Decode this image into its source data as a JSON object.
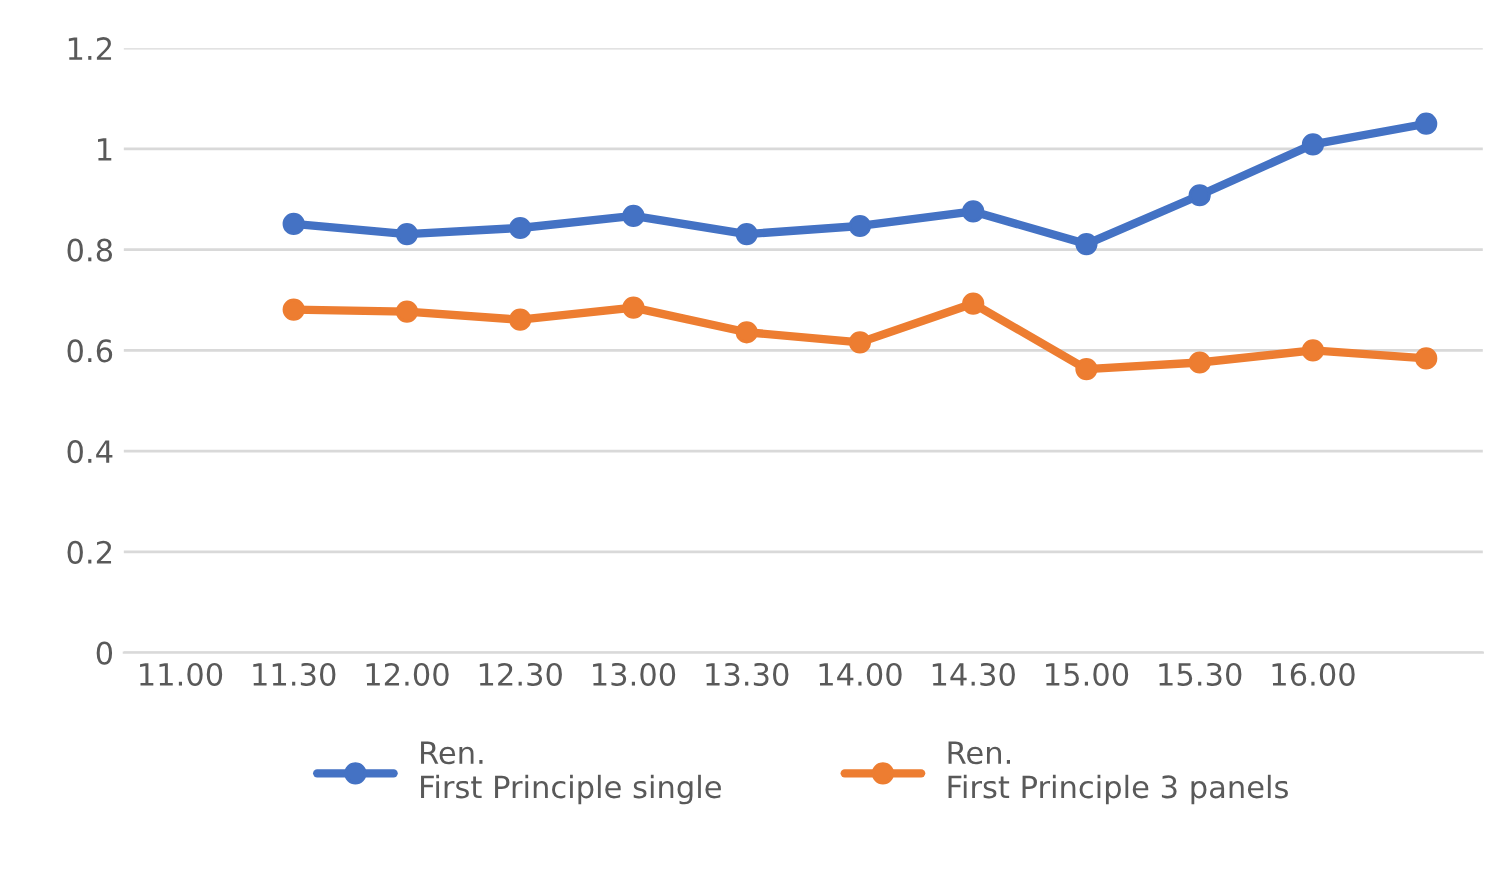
{
  "chart_data": {
    "type": "line",
    "categories": [
      "11.00",
      "11.30",
      "12.00",
      "12.30",
      "13.00",
      "13.30",
      "14.00",
      "14.30",
      "15.00",
      "15.30",
      "16.00",
      null
    ],
    "series": [
      {
        "name": "Ren.\nFirst Principle single",
        "color": "#4472c4",
        "values": [
          null,
          0.851,
          0.831,
          0.843,
          0.867,
          0.831,
          0.847,
          0.876,
          0.811,
          0.908,
          1.009,
          1.05
        ]
      },
      {
        "name": "Ren.\nFirst Principle 3 panels",
        "color": "#ed7d31",
        "values": [
          null,
          0.681,
          0.677,
          0.661,
          0.685,
          0.636,
          0.616,
          0.693,
          0.563,
          0.576,
          0.6,
          0.584
        ]
      }
    ],
    "ylim": [
      0,
      1.2
    ],
    "yticks": [
      0,
      0.2,
      0.4,
      0.6,
      0.8,
      1,
      1.2
    ],
    "grid": "y",
    "legend": "bottom",
    "marker": "circle",
    "line_style": "solid"
  }
}
